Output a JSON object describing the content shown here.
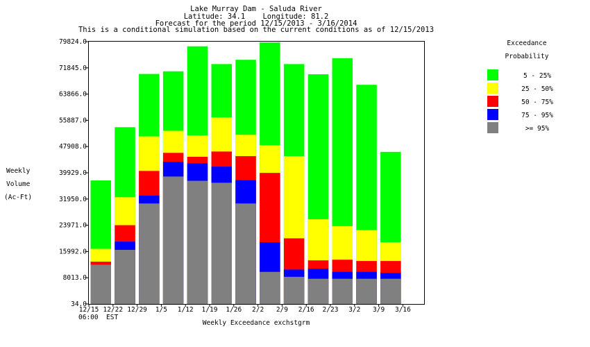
{
  "chart_data": {
    "type": "stacked-bar",
    "title_lines": [
      "Lake Murray Dam - Saluda River",
      "Latitude: 34.1    Longitude: 81.2",
      "Forecast for the period 12/15/2013 - 3/16/2014",
      "This is a conditional simulation based on the current conditions as of 12/15/2013"
    ],
    "ylabel_lines": [
      "Weekly",
      "Volume",
      "(Ac-Ft)"
    ],
    "xlabel": "Weekly Exceedance exchstgrm",
    "x_sub_label": "06:00  EST",
    "y_ticks": [
      "79824.0",
      "71845.0",
      "63866.0",
      "55887.0",
      "47908.0",
      "39929.0",
      "31950.0",
      "23971.0",
      "15992.0",
      "8013.0",
      "34.0"
    ],
    "ylim": [
      34.0,
      79824.0
    ],
    "x_tick_labels": [
      "12/15",
      "12/22",
      "12/29",
      "1/5",
      "1/12",
      "1/19",
      "1/26",
      "2/2",
      "2/9",
      "2/16",
      "2/23",
      "3/2",
      "3/9",
      "3/16"
    ],
    "legend": {
      "title_lines": [
        "Exceedance",
        "Probability"
      ],
      "entries": [
        {
          "label": "5 - 25%",
          "color": "#00ff00"
        },
        {
          "label": "25 - 50%",
          "color": "#ffff00"
        },
        {
          "label": "50 - 75%",
          "color": "#ff0000"
        },
        {
          "label": "75 - 95%",
          "color": "#0000ff"
        },
        {
          "label": ">= 95%",
          "color": "#808080"
        }
      ]
    },
    "bars": [
      {
        "week": "12/15",
        "gt95": 12000,
        "p75_95": 12000,
        "p50_75": 12900,
        "p25_50": 16800,
        "p5_25": 37600
      },
      {
        "week": "12/22",
        "gt95": 16500,
        "p75_95": 19000,
        "p50_75": 24000,
        "p25_50": 32500,
        "p5_25": 53800
      },
      {
        "week": "12/29",
        "gt95": 30600,
        "p75_95": 33000,
        "p50_75": 40500,
        "p25_50": 51000,
        "p5_25": 70000
      },
      {
        "week": "1/5",
        "gt95": 38800,
        "p75_95": 43300,
        "p50_75": 46000,
        "p25_50": 52700,
        "p5_25": 70800
      },
      {
        "week": "1/12",
        "gt95": 37500,
        "p75_95": 42800,
        "p50_75": 44800,
        "p25_50": 51300,
        "p5_25": 78400
      },
      {
        "week": "1/19",
        "gt95": 36900,
        "p75_95": 41800,
        "p50_75": 46400,
        "p25_50": 56800,
        "p5_25": 73000
      },
      {
        "week": "1/26",
        "gt95": 30600,
        "p75_95": 37700,
        "p50_75": 45000,
        "p25_50": 51500,
        "p5_25": 74300
      },
      {
        "week": "2/2",
        "gt95": 9800,
        "p75_95": 18800,
        "p50_75": 39900,
        "p25_50": 48300,
        "p5_25": 79600
      },
      {
        "week": "2/9",
        "gt95": 8300,
        "p75_95": 10500,
        "p50_75": 20000,
        "p25_50": 45000,
        "p5_25": 73000
      },
      {
        "week": "2/16",
        "gt95": 7700,
        "p75_95": 10800,
        "p50_75": 13300,
        "p25_50": 25800,
        "p5_25": 69900
      },
      {
        "week": "2/23",
        "gt95": 7700,
        "p75_95": 9800,
        "p50_75": 13500,
        "p25_50": 23700,
        "p5_25": 74800
      },
      {
        "week": "3/2",
        "gt95": 7700,
        "p75_95": 9800,
        "p50_75": 13100,
        "p25_50": 22500,
        "p5_25": 66700
      },
      {
        "week": "3/9",
        "gt95": 7700,
        "p75_95": 9500,
        "p50_75": 13100,
        "p25_50": 18800,
        "p5_25": 46300
      }
    ]
  }
}
